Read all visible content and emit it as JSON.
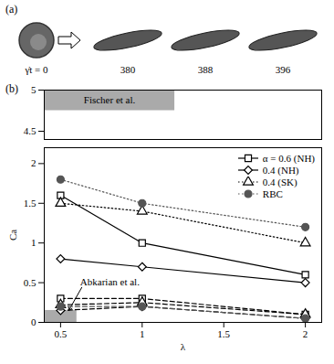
{
  "panel_a": {
    "label": "(a)",
    "time_labels": [
      "γ̇t = 0",
      "380",
      "388",
      "396"
    ]
  },
  "chart_data": [
    {
      "type": "line",
      "panel_label": "(b)",
      "xlim": [
        0.4,
        2.1
      ],
      "ylim": [
        4.4,
        5.0
      ],
      "yticks": [
        4.5,
        5
      ],
      "tick_labels": "y",
      "regions": [
        {
          "label": "Fischer et al.",
          "xrange": [
            0.4,
            1.2
          ],
          "yrange": [
            4.75,
            5.0
          ],
          "color": "#aaaaaa"
        }
      ]
    },
    {
      "type": "line",
      "xlabel": "λ",
      "ylabel": "Ca",
      "xlim": [
        0.4,
        2.1
      ],
      "xticks": [
        0.5,
        1,
        1.5,
        2
      ],
      "ylim": [
        0,
        2.2
      ],
      "yticks": [
        0,
        0.5,
        1,
        1.5,
        2
      ],
      "legend": "top-right",
      "x": [
        0.5,
        1,
        2
      ],
      "series": [
        {
          "name": "α = 0.6 (NH)",
          "color": "#000000",
          "marker": "square-open",
          "line_style": "solid",
          "values": [
            1.6,
            1.0,
            0.6
          ]
        },
        {
          "name": "0.4 (NH)",
          "color": "#000000",
          "marker": "diamond-open",
          "line_style": "solid",
          "values": [
            0.8,
            0.7,
            0.5
          ]
        },
        {
          "name": "0.4 (SK)",
          "color": "#000000",
          "marker": "triangle-open",
          "line_style": "dotted",
          "values": [
            1.5,
            1.4,
            1.0
          ]
        },
        {
          "name": "RBC",
          "color": "#555555",
          "marker": "circle",
          "line_style": "dotted",
          "values": [
            1.8,
            1.5,
            1.2
          ]
        },
        {
          "name": "α = 0.6 (NH)",
          "color": "#000000",
          "marker": "square-open",
          "line_style": "dashed",
          "values": [
            0.3,
            0.3,
            0.1
          ]
        },
        {
          "name": "0.4 (NH)",
          "color": "#000000",
          "marker": "diamond-open",
          "line_style": "dashed",
          "values": [
            0.15,
            0.2,
            0.05
          ]
        },
        {
          "name": "0.4 (SK)",
          "color": "#000000",
          "marker": "triangle-open",
          "line_style": "dashed",
          "values": [
            0.22,
            0.25,
            0.1
          ]
        },
        {
          "name": "RBC",
          "color": "#555555",
          "marker": "circle",
          "line_style": "dashed",
          "values": [
            0.2,
            0.2,
            0.05
          ]
        }
      ],
      "regions": [
        {
          "label": "Abkarian et al.",
          "xrange": [
            0.4,
            0.6
          ],
          "yrange": [
            0,
            0.15
          ],
          "color": "#aaaaaa"
        }
      ]
    }
  ]
}
